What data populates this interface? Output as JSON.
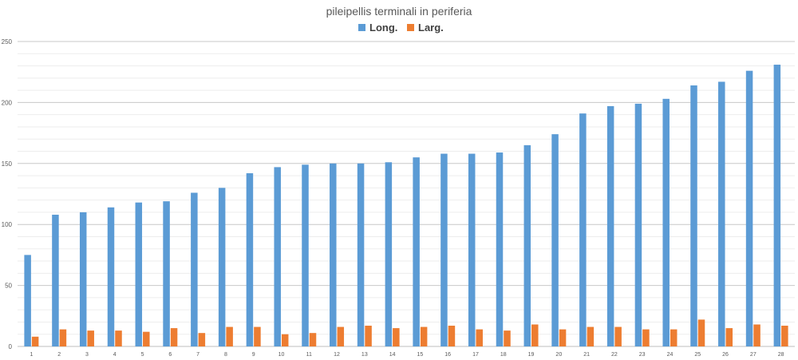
{
  "chart_data": {
    "type": "bar",
    "title": "pileipellis terminali in periferia",
    "xlabel": "",
    "ylabel": "",
    "ylim": [
      0,
      250
    ],
    "yticks": [
      0,
      50,
      100,
      150,
      200,
      250
    ],
    "grid": true,
    "minor_grid": true,
    "legend_position": "top",
    "categories": [
      "1",
      "2",
      "3",
      "4",
      "5",
      "6",
      "7",
      "8",
      "9",
      "10",
      "11",
      "12",
      "13",
      "14",
      "15",
      "16",
      "17",
      "18",
      "19",
      "20",
      "21",
      "22",
      "23",
      "24",
      "25",
      "26",
      "27",
      "28"
    ],
    "series": [
      {
        "name": "Long.",
        "color": "#5B9BD5",
        "values": [
          75,
          108,
          110,
          114,
          118,
          119,
          126,
          130,
          142,
          147,
          149,
          150,
          150,
          151,
          155,
          158,
          158,
          159,
          165,
          174,
          191,
          197,
          199,
          203,
          214,
          217,
          226,
          231
        ]
      },
      {
        "name": "Larg.",
        "color": "#ED7D31",
        "values": [
          8,
          14,
          13,
          13,
          12,
          15,
          11,
          16,
          16,
          10,
          11,
          16,
          17,
          15,
          16,
          17,
          14,
          13,
          18,
          14,
          16,
          16,
          14,
          14,
          22,
          15,
          18,
          17
        ]
      }
    ]
  }
}
